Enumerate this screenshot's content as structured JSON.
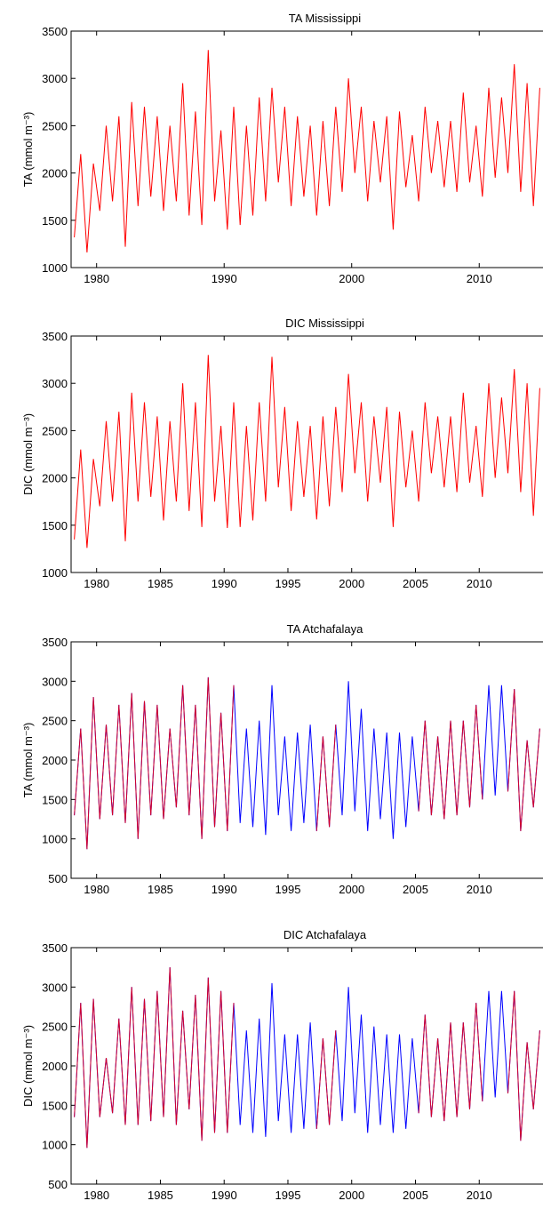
{
  "chart_data": [
    {
      "type": "line",
      "title": "TA Mississippi",
      "y_label": "TA (mmol m⁻³)",
      "x": [
        1978.25,
        1978.75,
        1979.25,
        1979.75,
        1980.25,
        1980.75,
        1981.25,
        1981.75,
        1982.25,
        1982.75,
        1983.25,
        1983.75,
        1984.25,
        1984.75,
        1985.25,
        1985.75,
        1986.25,
        1986.75,
        1987.25,
        1987.75,
        1988.25,
        1988.75,
        1989.25,
        1989.75,
        1990.25,
        1990.75,
        1991.25,
        1991.75,
        1992.25,
        1992.75,
        1993.25,
        1993.75,
        1994.25,
        1994.75,
        1995.25,
        1995.75,
        1996.25,
        1996.75,
        1997.25,
        1997.75,
        1998.25,
        1998.75,
        1999.25,
        1999.75,
        2000.25,
        2000.75,
        2001.25,
        2001.75,
        2002.25,
        2002.75,
        2003.25,
        2003.75,
        2004.25,
        2004.75,
        2005.25,
        2005.75,
        2006.25,
        2006.75,
        2007.25,
        2007.75,
        2008.25,
        2008.75,
        2009.25,
        2009.75,
        2010.25,
        2010.75,
        2011.25,
        2011.75,
        2012.25,
        2012.75,
        2013.25,
        2013.75,
        2014.25,
        2014.75
      ],
      "series": [
        {
          "color": "#ff0000",
          "values": [
            1320,
            2200,
            1160,
            2100,
            1600,
            2500,
            1700,
            2600,
            1220,
            2750,
            1650,
            2700,
            1750,
            2600,
            1600,
            2500,
            1700,
            2950,
            1550,
            2650,
            1450,
            3300,
            1700,
            2450,
            1400,
            2700,
            1450,
            2500,
            1550,
            2800,
            1700,
            2900,
            1900,
            2700,
            1650,
            2600,
            1750,
            2500,
            1550,
            2550,
            1650,
            2700,
            1800,
            3000,
            2000,
            2700,
            1700,
            2550,
            1900,
            2600,
            1400,
            2650,
            1850,
            2400,
            1700,
            2700,
            2000,
            2550,
            1850,
            2550,
            1800,
            2850,
            1900,
            2500,
            1750,
            2900,
            1950,
            2800,
            2000,
            3150,
            1800,
            2950,
            1650,
            2900
          ]
        }
      ],
      "xlim": [
        1978,
        2015
      ],
      "ylim": [
        1000,
        3500
      ],
      "xticks": [
        1980,
        1990,
        2000,
        2010
      ],
      "yticks": [
        1000,
        1500,
        2000,
        2500,
        3000,
        3500
      ]
    },
    {
      "type": "line",
      "title": "DIC Mississippi",
      "y_label": "DIC (mmol m⁻³)",
      "x": [
        1978.25,
        1978.75,
        1979.25,
        1979.75,
        1980.25,
        1980.75,
        1981.25,
        1981.75,
        1982.25,
        1982.75,
        1983.25,
        1983.75,
        1984.25,
        1984.75,
        1985.25,
        1985.75,
        1986.25,
        1986.75,
        1987.25,
        1987.75,
        1988.25,
        1988.75,
        1989.25,
        1989.75,
        1990.25,
        1990.75,
        1991.25,
        1991.75,
        1992.25,
        1992.75,
        1993.25,
        1993.75,
        1994.25,
        1994.75,
        1995.25,
        1995.75,
        1996.25,
        1996.75,
        1997.25,
        1997.75,
        1998.25,
        1998.75,
        1999.25,
        1999.75,
        2000.25,
        2000.75,
        2001.25,
        2001.75,
        2002.25,
        2002.75,
        2003.25,
        2003.75,
        2004.25,
        2004.75,
        2005.25,
        2005.75,
        2006.25,
        2006.75,
        2007.25,
        2007.75,
        2008.25,
        2008.75,
        2009.25,
        2009.75,
        2010.25,
        2010.75,
        2011.25,
        2011.75,
        2012.25,
        2012.75,
        2013.25,
        2013.75,
        2014.25,
        2014.75
      ],
      "series": [
        {
          "color": "#ff0000",
          "values": [
            1350,
            2300,
            1260,
            2200,
            1700,
            2600,
            1750,
            2700,
            1330,
            2900,
            1750,
            2800,
            1800,
            2650,
            1550,
            2600,
            1750,
            3000,
            1650,
            2800,
            1480,
            3300,
            1750,
            2550,
            1470,
            2800,
            1480,
            2550,
            1550,
            2800,
            1750,
            3280,
            1900,
            2750,
            1650,
            2600,
            1800,
            2550,
            1560,
            2650,
            1700,
            2750,
            1850,
            3100,
            2050,
            2800,
            1750,
            2650,
            1950,
            2750,
            1480,
            2700,
            1900,
            2500,
            1750,
            2800,
            2050,
            2650,
            1900,
            2650,
            1850,
            2900,
            1950,
            2550,
            1800,
            3000,
            2000,
            2850,
            2050,
            3150,
            1850,
            3000,
            1600,
            2950
          ]
        }
      ],
      "xlim": [
        1978,
        2015
      ],
      "ylim": [
        1000,
        3500
      ],
      "xticks": [
        1980,
        1985,
        1990,
        1995,
        2000,
        2005,
        2010
      ],
      "yticks": [
        1000,
        1500,
        2000,
        2500,
        3000,
        3500
      ]
    },
    {
      "type": "line",
      "title": "TA Atchafalaya",
      "y_label": "TA (mmol m⁻³)",
      "x": [
        1978.25,
        1978.75,
        1979.25,
        1979.75,
        1980.25,
        1980.75,
        1981.25,
        1981.75,
        1982.25,
        1982.75,
        1983.25,
        1983.75,
        1984.25,
        1984.75,
        1985.25,
        1985.75,
        1986.25,
        1986.75,
        1987.25,
        1987.75,
        1988.25,
        1988.75,
        1989.25,
        1989.75,
        1990.25,
        1990.75,
        1991.25,
        1991.75,
        1992.25,
        1992.75,
        1993.25,
        1993.75,
        1994.25,
        1994.75,
        1995.25,
        1995.75,
        1996.25,
        1996.75,
        1997.25,
        1997.75,
        1998.25,
        1998.75,
        1999.25,
        1999.75,
        2000.25,
        2000.75,
        2001.25,
        2001.75,
        2002.25,
        2002.75,
        2003.25,
        2003.75,
        2004.25,
        2004.75,
        2005.25,
        2005.75,
        2006.25,
        2006.75,
        2007.25,
        2007.75,
        2008.25,
        2008.75,
        2009.25,
        2009.75,
        2010.25,
        2010.75,
        2011.25,
        2011.75,
        2012.25,
        2012.75,
        2013.25,
        2013.75,
        2014.25,
        2014.75
      ],
      "series": [
        {
          "color": "#0000ff",
          "values": [
            1300,
            2400,
            870,
            2800,
            1250,
            2450,
            1300,
            2700,
            1200,
            2850,
            1000,
            2750,
            1300,
            2700,
            1250,
            2400,
            1400,
            2950,
            1300,
            2700,
            1000,
            3050,
            1150,
            2600,
            1100,
            2950,
            1200,
            2400,
            1150,
            2500,
            1050,
            2950,
            1300,
            2300,
            1100,
            2350,
            1200,
            2450,
            1100,
            2300,
            1150,
            2450,
            1300,
            3000,
            1350,
            2650,
            1100,
            2400,
            1250,
            2350,
            1000,
            2350,
            1150,
            2300,
            1350,
            2500,
            1300,
            2300,
            1250,
            2500,
            1300,
            2500,
            1400,
            2700,
            1500,
            2950,
            1550,
            2950,
            1600,
            2900,
            1100,
            2250,
            1400,
            2400
          ]
        },
        {
          "color": "#d4002a",
          "values": [
            1300,
            2400,
            870,
            2800,
            1250,
            2450,
            1300,
            2700,
            1200,
            2850,
            1000,
            2750,
            1300,
            2700,
            1250,
            2400,
            1400,
            2950,
            1300,
            2700,
            1000,
            3050,
            1150,
            2600,
            1100,
            2950,
            null,
            null,
            null,
            null,
            null,
            null,
            null,
            null,
            null,
            null,
            null,
            null,
            1100,
            2300,
            1150,
            2450,
            null,
            null,
            null,
            null,
            null,
            null,
            null,
            null,
            null,
            null,
            null,
            null,
            1350,
            2500,
            1300,
            2300,
            1250,
            2500,
            1300,
            2500,
            1400,
            2700,
            1500,
            null,
            null,
            null,
            1600,
            2900,
            1100,
            2250,
            1400,
            2400
          ]
        }
      ],
      "xlim": [
        1978,
        2015
      ],
      "ylim": [
        500,
        3500
      ],
      "xticks": [
        1980,
        1985,
        1990,
        1995,
        2000,
        2005,
        2010
      ],
      "yticks": [
        500,
        1000,
        1500,
        2000,
        2500,
        3000,
        3500
      ]
    },
    {
      "type": "line",
      "title": "DIC Atchafalaya",
      "y_label": "DIC (mmol m⁻³)",
      "x": [
        1978.25,
        1978.75,
        1979.25,
        1979.75,
        1980.25,
        1980.75,
        1981.25,
        1981.75,
        1982.25,
        1982.75,
        1983.25,
        1983.75,
        1984.25,
        1984.75,
        1985.25,
        1985.75,
        1986.25,
        1986.75,
        1987.25,
        1987.75,
        1988.25,
        1988.75,
        1989.25,
        1989.75,
        1990.25,
        1990.75,
        1991.25,
        1991.75,
        1992.25,
        1992.75,
        1993.25,
        1993.75,
        1994.25,
        1994.75,
        1995.25,
        1995.75,
        1996.25,
        1996.75,
        1997.25,
        1997.75,
        1998.25,
        1998.75,
        1999.25,
        1999.75,
        2000.25,
        2000.75,
        2001.25,
        2001.75,
        2002.25,
        2002.75,
        2003.25,
        2003.75,
        2004.25,
        2004.75,
        2005.25,
        2005.75,
        2006.25,
        2006.75,
        2007.25,
        2007.75,
        2008.25,
        2008.75,
        2009.25,
        2009.75,
        2010.25,
        2010.75,
        2011.25,
        2011.75,
        2012.25,
        2012.75,
        2013.25,
        2013.75,
        2014.25,
        2014.75
      ],
      "series": [
        {
          "color": "#0000ff",
          "values": [
            1350,
            2800,
            960,
            2850,
            1350,
            2100,
            1400,
            2600,
            1250,
            3000,
            1250,
            2850,
            1300,
            2950,
            1350,
            3250,
            1250,
            2700,
            1450,
            2900,
            1050,
            3120,
            1150,
            2950,
            1150,
            2800,
            1250,
            2450,
            1150,
            2600,
            1100,
            3050,
            1300,
            2400,
            1150,
            2400,
            1200,
            2550,
            1200,
            2350,
            1250,
            2450,
            1300,
            3000,
            1400,
            2650,
            1150,
            2500,
            1250,
            2400,
            1150,
            2400,
            1200,
            2350,
            1400,
            2650,
            1350,
            2350,
            1300,
            2550,
            1350,
            2550,
            1450,
            2800,
            1550,
            2950,
            1600,
            2950,
            1650,
            2950,
            1050,
            2300,
            1450,
            2450
          ]
        },
        {
          "color": "#d4002a",
          "values": [
            1350,
            2800,
            960,
            2850,
            1350,
            2100,
            1400,
            2600,
            1250,
            3000,
            1250,
            2850,
            1300,
            2950,
            1350,
            3250,
            1250,
            2700,
            1450,
            2900,
            1050,
            3120,
            1150,
            2950,
            1150,
            2800,
            null,
            null,
            null,
            null,
            null,
            null,
            null,
            null,
            null,
            null,
            null,
            null,
            1200,
            2350,
            1250,
            2450,
            null,
            null,
            null,
            null,
            null,
            null,
            null,
            null,
            null,
            null,
            null,
            null,
            1400,
            2650,
            1350,
            2350,
            1300,
            2550,
            1350,
            2550,
            1450,
            2800,
            1550,
            null,
            null,
            null,
            1650,
            2950,
            1050,
            2300,
            1450,
            2450
          ]
        }
      ],
      "xlim": [
        1978,
        2015
      ],
      "ylim": [
        500,
        3500
      ],
      "xticks": [
        1980,
        1985,
        1990,
        1995,
        2000,
        2005,
        2010
      ],
      "yticks": [
        500,
        1000,
        1500,
        2000,
        2500,
        3000,
        3500
      ]
    }
  ]
}
